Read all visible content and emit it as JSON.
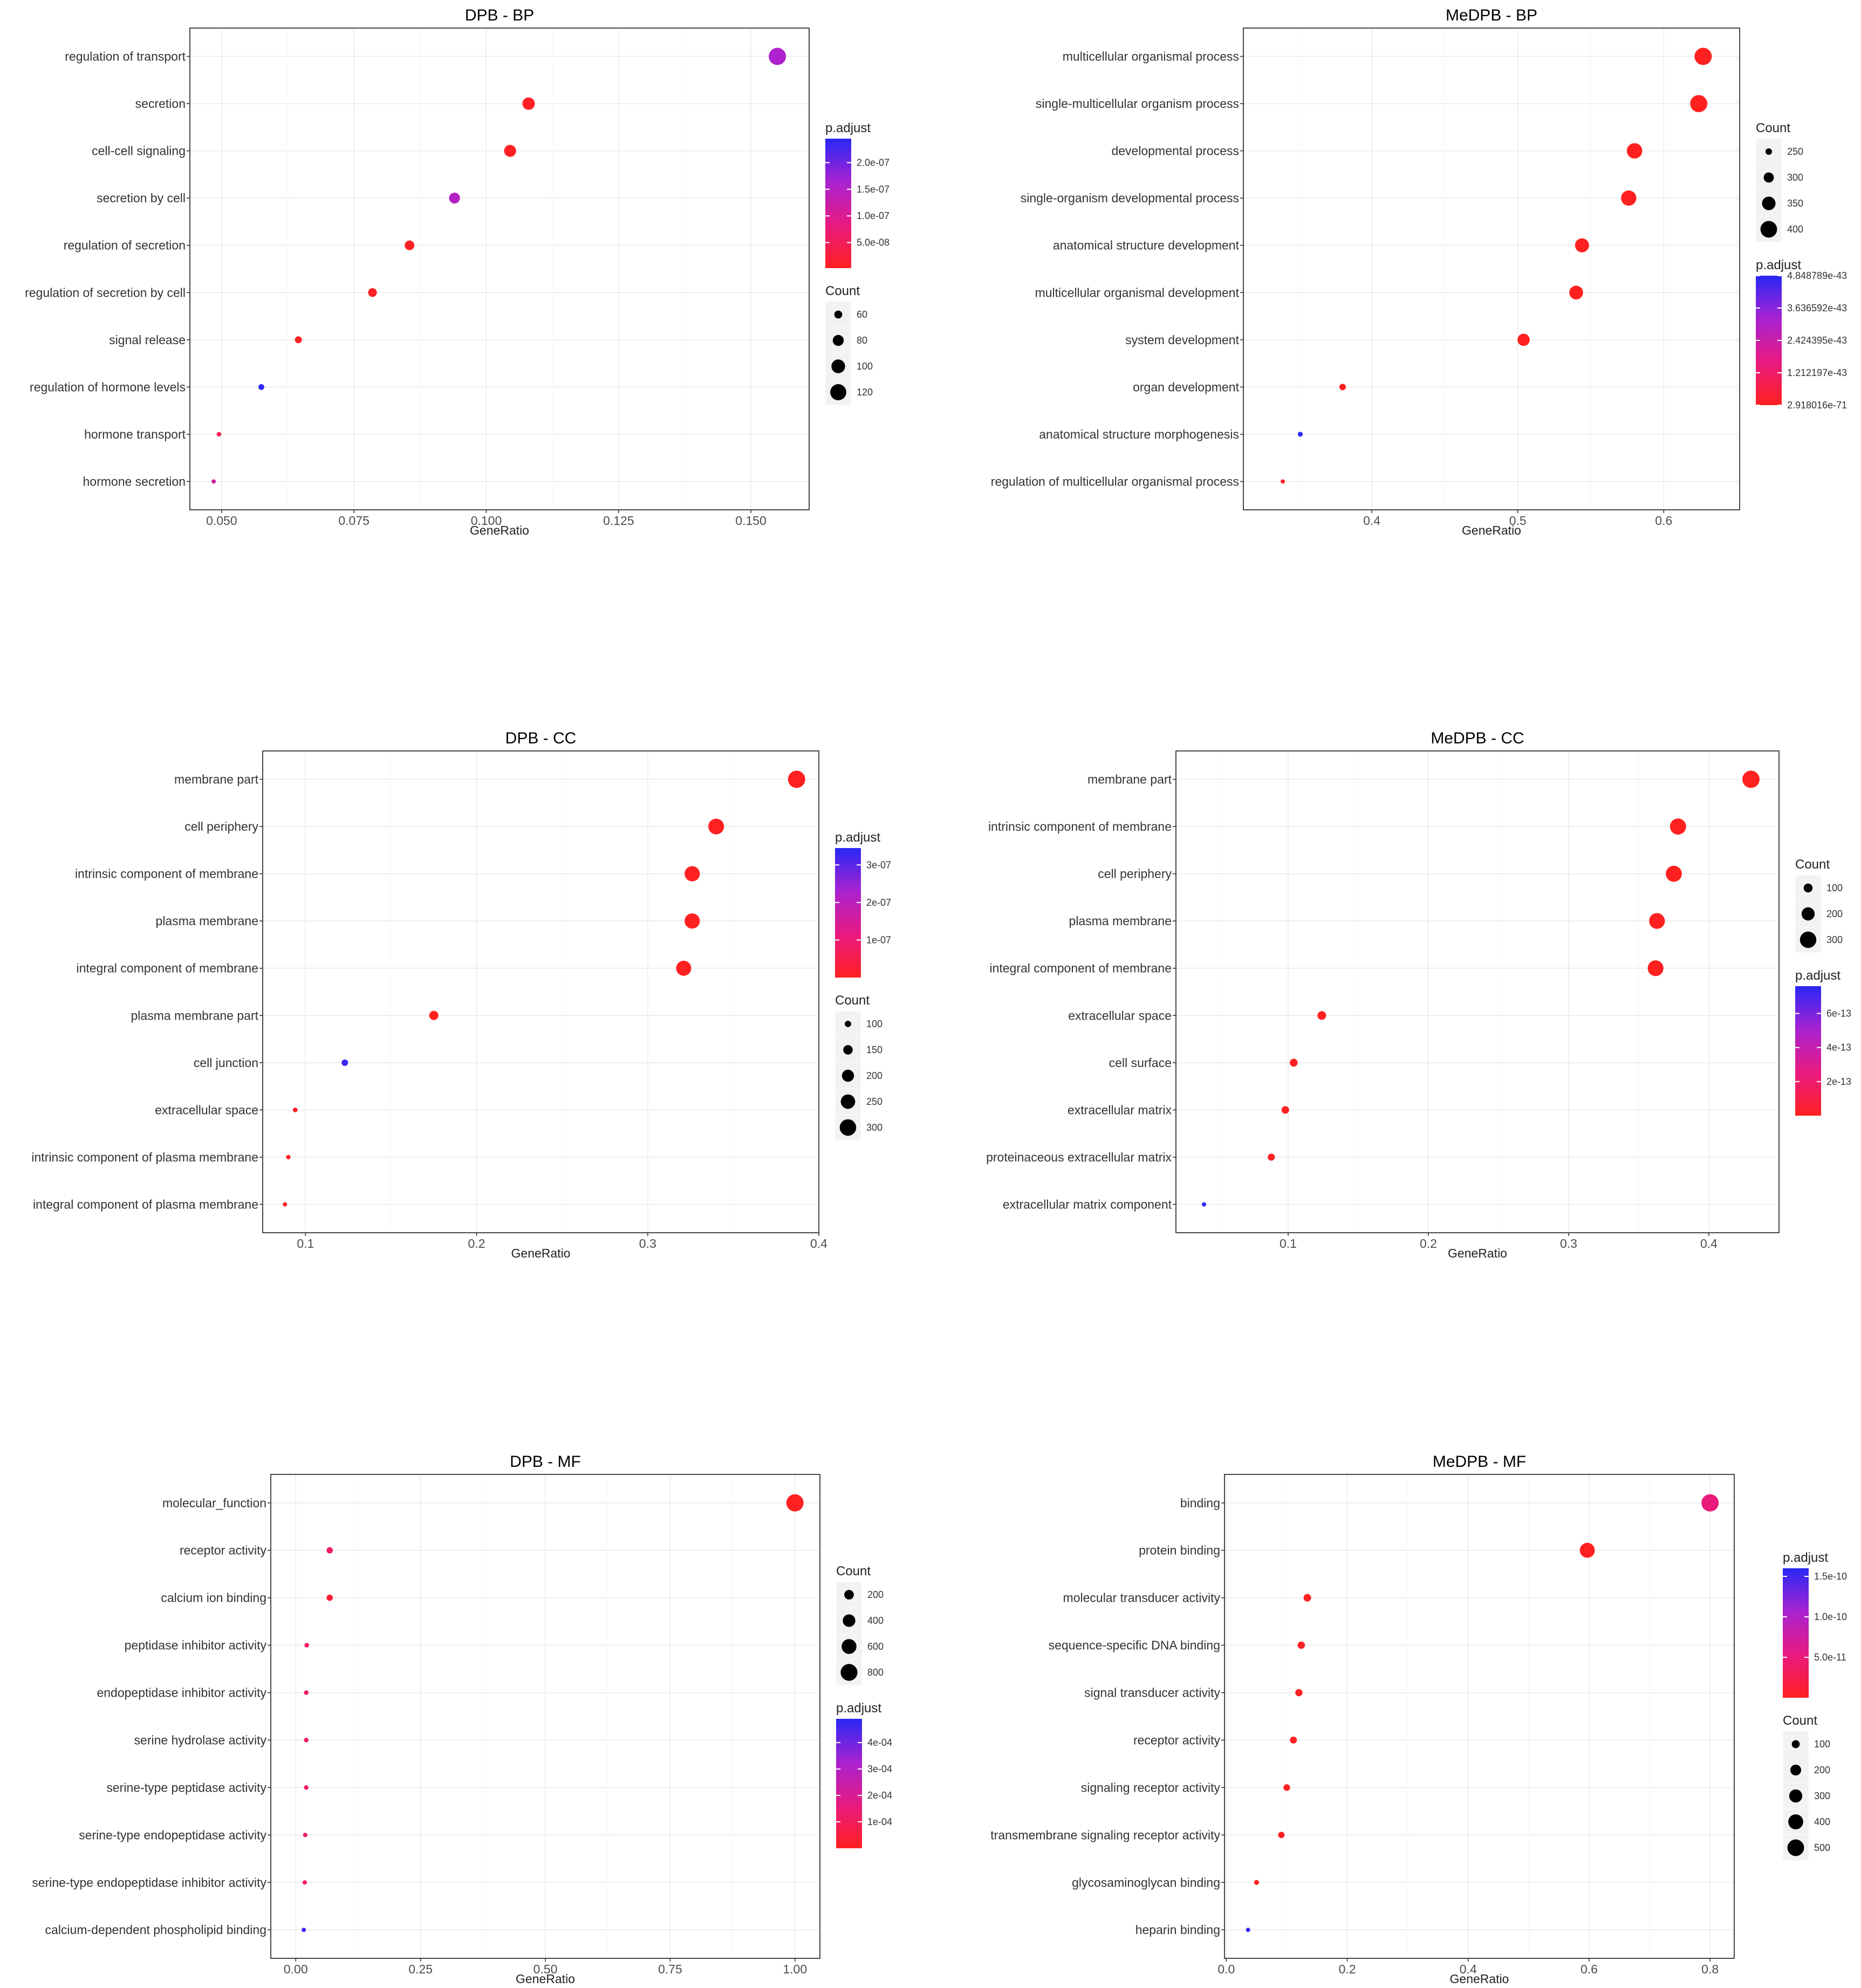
{
  "chart_data": [
    {
      "type": "scatter",
      "title": "DPB - BP",
      "xlabel": "GeneRatio",
      "ylabel": "",
      "xlim": [
        0.044,
        0.161
      ],
      "xticks": [
        {
          "v": 0.05,
          "label": "0.050"
        },
        {
          "v": 0.075,
          "label": "0.075"
        },
        {
          "v": 0.1,
          "label": "0.100"
        },
        {
          "v": 0.125,
          "label": "0.125"
        },
        {
          "v": 0.15,
          "label": "0.150"
        }
      ],
      "terms": [
        {
          "name": "regulation of transport",
          "x": 0.155,
          "count": 130,
          "padj": 1.6e-07
        },
        {
          "name": "secretion",
          "x": 0.108,
          "count": 90,
          "padj": 4e-09
        },
        {
          "name": "cell-cell signaling",
          "x": 0.1045,
          "count": 87,
          "padj": 4e-09
        },
        {
          "name": "secretion by cell",
          "x": 0.094,
          "count": 79,
          "padj": 1.5e-07
        },
        {
          "name": "regulation of secretion",
          "x": 0.0855,
          "count": 71,
          "padj": 5e-09
        },
        {
          "name": "regulation of secretion by cell",
          "x": 0.0785,
          "count": 65,
          "padj": 5e-09
        },
        {
          "name": "signal release",
          "x": 0.0645,
          "count": 54,
          "padj": 4e-09
        },
        {
          "name": "regulation of hormone levels",
          "x": 0.0575,
          "count": 48,
          "padj": 2.4e-07
        },
        {
          "name": "hormone transport",
          "x": 0.0495,
          "count": 41,
          "padj": 4.5e-08
        },
        {
          "name": "hormone secretion",
          "x": 0.0485,
          "count": 40,
          "padj": 1.2e-07
        }
      ],
      "legend": [
        {
          "kind": "color",
          "title": "p.adjust",
          "top": "p.adjust",
          "ticks": [
            {
              "v": 2e-07,
              "label": "2.0e-07"
            },
            {
              "v": 1.5e-07,
              "label": "1.5e-07"
            },
            {
              "v": 1e-07,
              "label": "1.0e-07"
            },
            {
              "v": 5e-08,
              "label": "5.0e-08"
            }
          ],
          "range": [
            2e-09,
            2.45e-07
          ]
        },
        {
          "kind": "size",
          "title": "Count",
          "entries": [
            {
              "v": 60,
              "label": "60"
            },
            {
              "v": 80,
              "label": "80"
            },
            {
              "v": 100,
              "label": "100"
            },
            {
              "v": 120,
              "label": "120"
            }
          ]
        }
      ]
    },
    {
      "type": "scatter",
      "title": "MeDPB - BP",
      "xlabel": "GeneRatio",
      "ylabel": "",
      "xlim": [
        0.312,
        0.652
      ],
      "xticks": [
        {
          "v": 0.4,
          "label": "0.4"
        },
        {
          "v": 0.5,
          "label": "0.5"
        },
        {
          "v": 0.6,
          "label": "0.6"
        }
      ],
      "terms": [
        {
          "name": "multicellular organismal process",
          "x": 0.627,
          "count": 410,
          "padj": 3e-71
        },
        {
          "name": "single-multicellular organism process",
          "x": 0.624,
          "count": 408,
          "padj": 3e-71
        },
        {
          "name": "developmental process",
          "x": 0.58,
          "count": 380,
          "padj": 3e-71
        },
        {
          "name": "single-organism developmental process",
          "x": 0.576,
          "count": 377,
          "padj": 3e-71
        },
        {
          "name": "anatomical structure development",
          "x": 0.544,
          "count": 357,
          "padj": 3e-71
        },
        {
          "name": "multicellular organismal development",
          "x": 0.54,
          "count": 354,
          "padj": 3e-71
        },
        {
          "name": "system development",
          "x": 0.504,
          "count": 330,
          "padj": 3e-71
        },
        {
          "name": "organ development",
          "x": 0.38,
          "count": 250,
          "padj": 3e-71
        },
        {
          "name": "anatomical structure morphogenesis",
          "x": 0.351,
          "count": 230,
          "padj": 4.85e-43
        },
        {
          "name": "regulation of multicellular organismal process",
          "x": 0.339,
          "count": 222,
          "padj": 2e-44
        }
      ],
      "legend": [
        {
          "kind": "size",
          "title": "Count",
          "entries": [
            {
              "v": 250,
              "label": "250"
            },
            {
              "v": 300,
              "label": "300"
            },
            {
              "v": 350,
              "label": "350"
            },
            {
              "v": 400,
              "label": "400"
            }
          ]
        },
        {
          "kind": "color",
          "title": "p.adjust",
          "ticks": [
            {
              "v": 4.848789e-43,
              "label": "4.848789e-43"
            },
            {
              "v": 3.636592e-43,
              "label": "3.636592e-43"
            },
            {
              "v": 2.424395e-43,
              "label": "2.424395e-43"
            },
            {
              "v": 1.212197e-43,
              "label": "1.212197e-43"
            },
            {
              "v": 0,
              "label": "2.918016e-71"
            }
          ],
          "range": [
            0,
            4.848789e-43
          ]
        }
      ]
    },
    {
      "type": "scatter",
      "title": "DPB - CC",
      "xlabel": "GeneRatio",
      "ylabel": "",
      "xlim": [
        0.075,
        0.4
      ],
      "xticks": [
        {
          "v": 0.1,
          "label": "0.1"
        },
        {
          "v": 0.2,
          "label": "0.2"
        },
        {
          "v": 0.3,
          "label": "0.3"
        },
        {
          "v": 0.4,
          "label": "0.4"
        }
      ],
      "terms": [
        {
          "name": "membrane part",
          "x": 0.387,
          "count": 320,
          "padj": 1e-09
        },
        {
          "name": "cell periphery",
          "x": 0.34,
          "count": 282,
          "padj": 1e-09
        },
        {
          "name": "intrinsic component of membrane",
          "x": 0.326,
          "count": 270,
          "padj": 1e-09
        },
        {
          "name": "plasma membrane",
          "x": 0.326,
          "count": 270,
          "padj": 1e-09
        },
        {
          "name": "integral component of membrane",
          "x": 0.321,
          "count": 266,
          "padj": 1e-09
        },
        {
          "name": "plasma membrane part",
          "x": 0.175,
          "count": 145,
          "padj": 1e-09
        },
        {
          "name": "cell junction",
          "x": 0.123,
          "count": 102,
          "padj": 3.3e-07
        },
        {
          "name": "extracellular space",
          "x": 0.094,
          "count": 78,
          "padj": 1e-08
        },
        {
          "name": "intrinsic component of plasma membrane",
          "x": 0.09,
          "count": 75,
          "padj": 1e-08
        },
        {
          "name": "integral component of plasma membrane",
          "x": 0.088,
          "count": 73,
          "padj": 1e-08
        }
      ],
      "legend": [
        {
          "kind": "color",
          "title": "p.adjust",
          "ticks": [
            {
              "v": 3e-07,
              "label": "3e-07"
            },
            {
              "v": 2e-07,
              "label": "2e-07"
            },
            {
              "v": 1e-07,
              "label": "1e-07"
            }
          ],
          "range": [
            0,
            3.45e-07
          ]
        },
        {
          "kind": "size",
          "title": "Count",
          "entries": [
            {
              "v": 100,
              "label": "100"
            },
            {
              "v": 150,
              "label": "150"
            },
            {
              "v": 200,
              "label": "200"
            },
            {
              "v": 250,
              "label": "250"
            },
            {
              "v": 300,
              "label": "300"
            }
          ]
        }
      ]
    },
    {
      "type": "scatter",
      "title": "MeDPB - CC",
      "xlabel": "GeneRatio",
      "ylabel": "",
      "xlim": [
        0.02,
        0.45
      ],
      "xticks": [
        {
          "v": 0.1,
          "label": "0.1"
        },
        {
          "v": 0.2,
          "label": "0.2"
        },
        {
          "v": 0.3,
          "label": "0.3"
        },
        {
          "v": 0.4,
          "label": "0.4"
        }
      ],
      "terms": [
        {
          "name": "membrane part",
          "x": 0.43,
          "count": 330,
          "padj": 1e-15
        },
        {
          "name": "intrinsic component of membrane",
          "x": 0.378,
          "count": 290,
          "padj": 1e-15
        },
        {
          "name": "cell periphery",
          "x": 0.375,
          "count": 288,
          "padj": 1e-15
        },
        {
          "name": "plasma membrane",
          "x": 0.363,
          "count": 279,
          "padj": 1e-15
        },
        {
          "name": "integral component of membrane",
          "x": 0.362,
          "count": 278,
          "padj": 1e-15
        },
        {
          "name": "extracellular space",
          "x": 0.124,
          "count": 95,
          "padj": 5e-15
        },
        {
          "name": "cell surface",
          "x": 0.104,
          "count": 80,
          "padj": 5e-15
        },
        {
          "name": "extracellular matrix",
          "x": 0.098,
          "count": 75,
          "padj": 5e-15
        },
        {
          "name": "proteinaceous extracellular matrix",
          "x": 0.088,
          "count": 67,
          "padj": 5e-15
        },
        {
          "name": "extracellular matrix component",
          "x": 0.04,
          "count": 30,
          "padj": 7.5e-13
        }
      ],
      "legend": [
        {
          "kind": "size",
          "title": "Count",
          "entries": [
            {
              "v": 100,
              "label": "100"
            },
            {
              "v": 200,
              "label": "200"
            },
            {
              "v": 300,
              "label": "300"
            }
          ]
        },
        {
          "kind": "color",
          "title": "p.adjust",
          "ticks": [
            {
              "v": 6e-13,
              "label": "6e-13"
            },
            {
              "v": 4e-13,
              "label": "4e-13"
            },
            {
              "v": 2e-13,
              "label": "2e-13"
            }
          ],
          "range": [
            0,
            7.6e-13
          ]
        }
      ]
    },
    {
      "type": "scatter",
      "title": "DPB - MF",
      "xlabel": "GeneRatio",
      "ylabel": "",
      "xlim": [
        -0.05,
        1.05
      ],
      "xticks": [
        {
          "v": 0,
          "label": "0.00"
        },
        {
          "v": 0.25,
          "label": "0.25"
        },
        {
          "v": 0.5,
          "label": "0.50"
        },
        {
          "v": 0.75,
          "label": "0.75"
        },
        {
          "v": 1.0,
          "label": "1.00"
        }
      ],
      "terms": [
        {
          "name": "molecular_function",
          "x": 1.0,
          "count": 850,
          "padj": 3e-06
        },
        {
          "name": "receptor activity",
          "x": 0.068,
          "count": 58,
          "padj": 0.00012
        },
        {
          "name": "calcium ion binding",
          "x": 0.068,
          "count": 58,
          "padj": 4e-05
        },
        {
          "name": "peptidase inhibitor activity",
          "x": 0.022,
          "count": 19,
          "padj": 0.0001
        },
        {
          "name": "endopeptidase inhibitor activity",
          "x": 0.021,
          "count": 18,
          "padj": 0.0001
        },
        {
          "name": "serine hydrolase activity",
          "x": 0.021,
          "count": 18,
          "padj": 0.0001
        },
        {
          "name": "serine-type peptidase activity",
          "x": 0.021,
          "count": 18,
          "padj": 0.0001
        },
        {
          "name": "serine-type endopeptidase activity",
          "x": 0.019,
          "count": 16,
          "padj": 0.0001
        },
        {
          "name": "serine-type endopeptidase inhibitor activity",
          "x": 0.018,
          "count": 15,
          "padj": 0.0001
        },
        {
          "name": "calcium-dependent phospholipid binding",
          "x": 0.016,
          "count": 14,
          "padj": 0.00046
        }
      ],
      "legend": [
        {
          "kind": "size",
          "title": "Count",
          "entries": [
            {
              "v": 200,
              "label": "200"
            },
            {
              "v": 400,
              "label": "400"
            },
            {
              "v": 600,
              "label": "600"
            },
            {
              "v": 800,
              "label": "800"
            }
          ]
        },
        {
          "kind": "color",
          "title": "p.adjust",
          "ticks": [
            {
              "v": 0.0004,
              "label": "4e-04"
            },
            {
              "v": 0.0003,
              "label": "3e-04"
            },
            {
              "v": 0.0002,
              "label": "2e-04"
            },
            {
              "v": 0.0001,
              "label": "1e-04"
            }
          ],
          "range": [
            0,
            0.00049
          ]
        }
      ]
    },
    {
      "type": "scatter",
      "title": "MeDPB - MF",
      "xlabel": "GeneRatio",
      "ylabel": "",
      "xlim": [
        -0.003,
        0.84
      ],
      "xticks": [
        {
          "v": 0,
          "label": "0.0"
        },
        {
          "v": 0.2,
          "label": "0.2"
        },
        {
          "v": 0.4,
          "label": "0.4"
        },
        {
          "v": 0.6,
          "label": "0.6"
        },
        {
          "v": 0.8,
          "label": "0.8"
        }
      ],
      "terms": [
        {
          "name": "binding",
          "x": 0.8,
          "count": 540,
          "padj": 5e-11
        },
        {
          "name": "protein binding",
          "x": 0.597,
          "count": 402,
          "padj": 1e-12
        },
        {
          "name": "molecular transducer activity",
          "x": 0.134,
          "count": 90,
          "padj": 1e-12
        },
        {
          "name": "sequence-specific DNA binding",
          "x": 0.124,
          "count": 84,
          "padj": 2e-12
        },
        {
          "name": "signal transducer activity",
          "x": 0.12,
          "count": 81,
          "padj": 1e-12
        },
        {
          "name": "receptor activity",
          "x": 0.111,
          "count": 75,
          "padj": 1e-12
        },
        {
          "name": "signaling receptor activity",
          "x": 0.1,
          "count": 67,
          "padj": 1e-12
        },
        {
          "name": "transmembrane signaling receptor activity",
          "x": 0.091,
          "count": 61,
          "padj": 1e-12
        },
        {
          "name": "glycosaminoglycan binding",
          "x": 0.05,
          "count": 34,
          "padj": 1e-12
        },
        {
          "name": "heparin binding",
          "x": 0.036,
          "count": 24,
          "padj": 1.55e-10
        }
      ],
      "legend": [
        {
          "kind": "color",
          "title": "p.adjust",
          "ticks": [
            {
              "v": 1.5e-10,
              "label": "1.5e-10"
            },
            {
              "v": 1e-10,
              "label": "1.0e-10"
            },
            {
              "v": 5e-11,
              "label": "5.0e-11"
            }
          ],
          "range": [
            0,
            1.6e-10
          ]
        },
        {
          "kind": "size",
          "title": "Count",
          "entries": [
            {
              "v": 100,
              "label": "100"
            },
            {
              "v": 200,
              "label": "200"
            },
            {
              "v": 300,
              "label": "300"
            },
            {
              "v": 400,
              "label": "400"
            },
            {
              "v": 500,
              "label": "500"
            }
          ]
        }
      ]
    }
  ]
}
